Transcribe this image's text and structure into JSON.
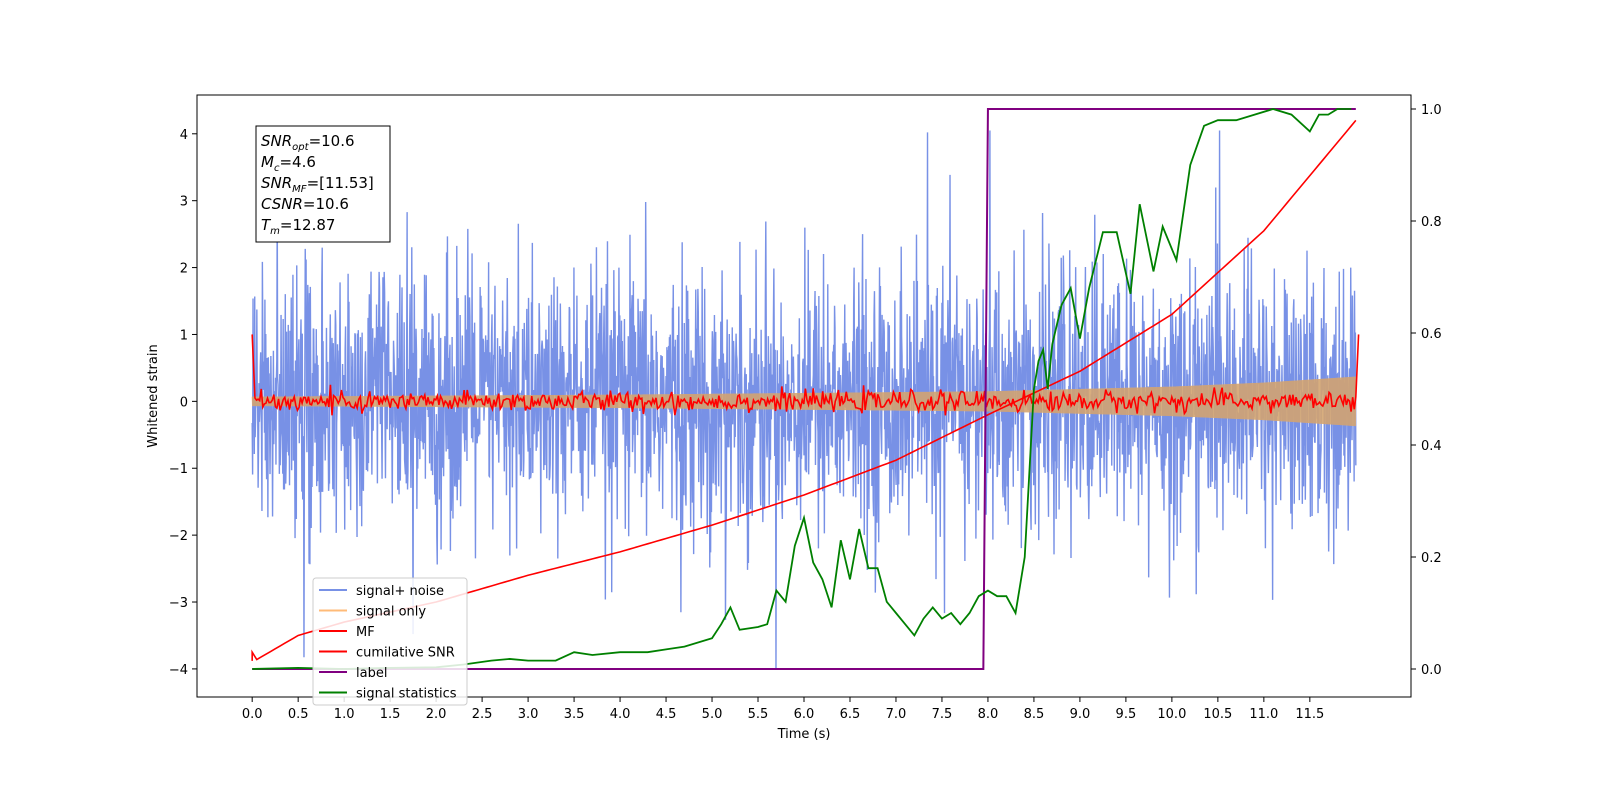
{
  "chart_data": {
    "type": "line",
    "xlabel": "Time (s)",
    "ylabel": "Whitened strain",
    "xlim": [
      -0.6,
      12.6
    ],
    "ylim": [
      -4.42,
      4.58
    ],
    "y2lim": [
      -0.05,
      1.025
    ],
    "x_ticks": [
      "0.0",
      "0.5",
      "1.0",
      "1.5",
      "2.0",
      "2.5",
      "3.0",
      "3.5",
      "4.0",
      "4.5",
      "5.0",
      "5.5",
      "6.0",
      "6.5",
      "7.0",
      "7.5",
      "8.0",
      "8.5",
      "9.0",
      "9.5",
      "10.0",
      "10.5",
      "11.0",
      "11.5"
    ],
    "y_ticks": [
      "4",
      "3",
      "2",
      "1",
      "0",
      "−1",
      "−2",
      "−3",
      "−4"
    ],
    "y2_ticks": [
      "1.0",
      "0.8",
      "0.6",
      "0.4",
      "0.2",
      "0.0"
    ],
    "annotation": [
      {
        "base": "SNR",
        "sub": "opt",
        "value": "=10.6"
      },
      {
        "base": "M",
        "sub": "c",
        "value": "=4.6"
      },
      {
        "base": "SNR",
        "sub": "MF",
        "value": "=[11.53]"
      },
      {
        "base": "CSNR",
        "sub": "",
        "value": "=10.6"
      },
      {
        "base": "T",
        "sub": "m",
        "value": "=12.87"
      }
    ],
    "legend_placement": "lower-left",
    "series": [
      {
        "name": "signal+ noise",
        "color": "#7891e6",
        "axis": "left",
        "description_value": "noisy whitened strain, amplitude about ±2 with spikes to about ±4, t from 0 to 12"
      },
      {
        "name": "signal only",
        "color": "#ffbb78",
        "axis": "left",
        "envelope": {
          "x": [
            0,
            4,
            8,
            10,
            11,
            12
          ],
          "amp": [
            0.07,
            0.1,
            0.15,
            0.22,
            0.28,
            0.37
          ]
        }
      },
      {
        "name": "MF",
        "color": "#ff0000",
        "axis": "left",
        "x": [
          0.0,
          0.03,
          12.0,
          12.03
        ],
        "y": [
          1.0,
          0.05,
          0.0,
          1.0
        ]
      },
      {
        "name": "cumilative SNR",
        "color": "#ff0000",
        "axis": "left",
        "x": [
          0.0,
          0.5,
          1.0,
          2.0,
          3.0,
          4.0,
          5.0,
          6.0,
          7.0,
          8.0,
          9.0,
          10.0,
          11.0,
          12.0
        ],
        "y": [
          -3.9,
          -3.5,
          -3.3,
          -3.0,
          -2.6,
          -2.25,
          -1.85,
          -1.4,
          -0.88,
          -0.2,
          0.45,
          1.3,
          2.55,
          4.2
        ]
      },
      {
        "name": "label",
        "color": "#800080",
        "axis": "right",
        "x": [
          0.0,
          7.95,
          8.0,
          12.0
        ],
        "y": [
          0.0,
          0.0,
          1.0,
          1.0
        ]
      },
      {
        "name": "signal statistics",
        "color": "#008000",
        "axis": "right",
        "x": [
          0.0,
          0.5,
          1.0,
          1.5,
          2.0,
          2.3,
          2.6,
          2.8,
          3.0,
          3.3,
          3.5,
          3.7,
          4.0,
          4.3,
          4.5,
          4.7,
          5.0,
          5.1,
          5.2,
          5.3,
          5.5,
          5.6,
          5.7,
          5.8,
          5.9,
          6.0,
          6.1,
          6.2,
          6.3,
          6.4,
          6.5,
          6.6,
          6.7,
          6.8,
          6.9,
          7.0,
          7.1,
          7.2,
          7.3,
          7.4,
          7.5,
          7.6,
          7.7,
          7.8,
          7.9,
          8.0,
          8.1,
          8.2,
          8.3,
          8.4,
          8.5,
          8.55,
          8.6,
          8.65,
          8.7,
          8.8,
          8.9,
          9.0,
          9.1,
          9.25,
          9.4,
          9.55,
          9.65,
          9.8,
          9.9,
          10.05,
          10.2,
          10.35,
          10.5,
          10.7,
          10.9,
          11.1,
          11.3,
          11.5,
          11.6,
          11.7,
          11.8,
          11.95
        ],
        "y": [
          0.0,
          0.002,
          0.0,
          0.002,
          0.003,
          0.008,
          0.015,
          0.018,
          0.015,
          0.015,
          0.03,
          0.025,
          0.03,
          0.03,
          0.035,
          0.04,
          0.055,
          0.08,
          0.11,
          0.07,
          0.075,
          0.08,
          0.14,
          0.12,
          0.22,
          0.27,
          0.19,
          0.16,
          0.11,
          0.23,
          0.16,
          0.25,
          0.18,
          0.18,
          0.12,
          0.1,
          0.08,
          0.06,
          0.09,
          0.11,
          0.09,
          0.1,
          0.08,
          0.1,
          0.13,
          0.14,
          0.13,
          0.13,
          0.1,
          0.2,
          0.5,
          0.55,
          0.57,
          0.5,
          0.58,
          0.65,
          0.68,
          0.59,
          0.68,
          0.78,
          0.78,
          0.67,
          0.83,
          0.71,
          0.79,
          0.73,
          0.9,
          0.97,
          0.98,
          0.98,
          0.99,
          1.0,
          0.99,
          0.96,
          0.99,
          0.99,
          1.0,
          1.0
        ]
      }
    ]
  }
}
